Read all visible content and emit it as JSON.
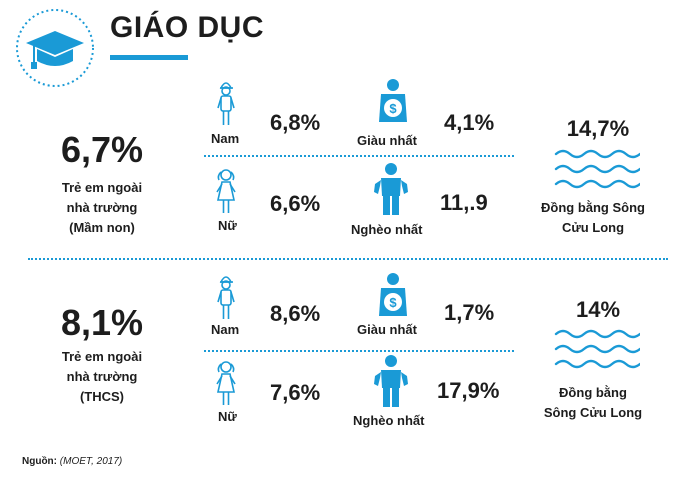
{
  "header": {
    "title": "GIÁO DỤC",
    "logo_icon": "graduation-cap-icon",
    "accent": "#1a9ad6"
  },
  "sections": [
    {
      "headline_value": "6,7%",
      "headline_desc": [
        "Trẻ em ngoài",
        "nhà trường",
        "(Mầm non)"
      ],
      "male_label": "Nam",
      "male_value": "6,8%",
      "female_label": "Nữ",
      "female_value": "6,6%",
      "richest_label": "Giàu nhất",
      "richest_value": "4,1%",
      "poorest_label": "Nghèo nhất",
      "poorest_value": "11,.9",
      "region_value": "14,7%",
      "region_label": [
        "Đồng bằng Sông",
        "Cửu Long"
      ]
    },
    {
      "headline_value": "8,1%",
      "headline_desc": [
        "Trẻ em ngoài",
        "nhà trường",
        "(THCS)"
      ],
      "male_label": "Nam",
      "male_value": "8,6%",
      "female_label": "Nữ",
      "female_value": "7,6%",
      "richest_label": "Giàu nhất",
      "richest_value": "1,7%",
      "poorest_label": "Nghèo nhất",
      "poorest_value": "17,9%",
      "region_value": "14%",
      "region_label": [
        "Đồng bằng",
        "Sông Cửu Long"
      ]
    }
  ],
  "icons": {
    "male": "boy-icon",
    "female": "girl-icon",
    "richest": "person-with-money-icon",
    "poorest": "person-empty-pockets-icon",
    "region": "water-waves-icon"
  },
  "source": {
    "label": "Nguồn:",
    "text": "(MOET, 2017)"
  }
}
